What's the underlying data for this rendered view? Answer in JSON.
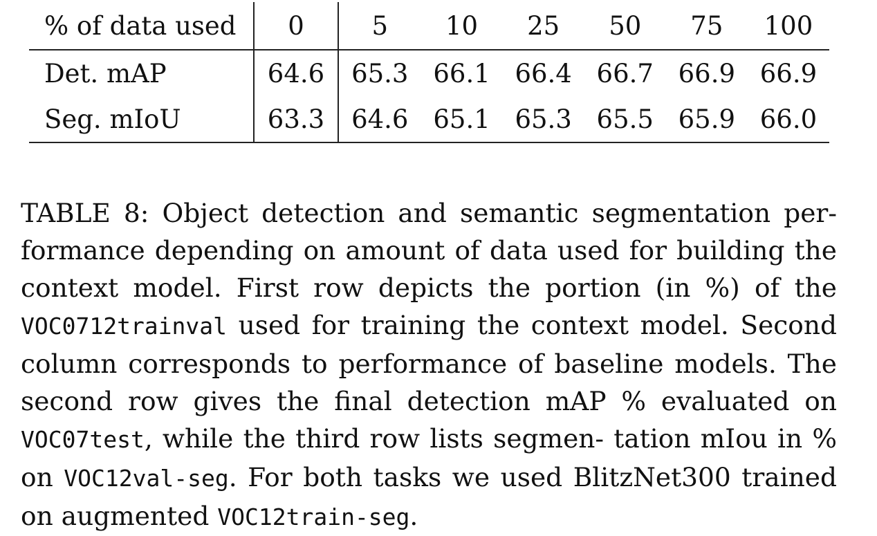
{
  "table": {
    "header_label": "% of data used",
    "columns": [
      "0",
      "5",
      "10",
      "25",
      "50",
      "75",
      "100"
    ],
    "rows": [
      {
        "label": "Det. mAP",
        "values": [
          "64.6",
          "65.3",
          "66.1",
          "66.4",
          "66.7",
          "66.9",
          "66.9"
        ]
      },
      {
        "label": "Seg. mIoU",
        "values": [
          "63.3",
          "64.6",
          "65.1",
          "65.3",
          "65.5",
          "65.9",
          "66.0"
        ]
      }
    ]
  },
  "caption": {
    "p1": "TABLE 8: Object detection and semantic segmentation per- formance depending on amount of data used for building the context model. First row depicts the portion (in %) of the ",
    "m1": "VOC0712trainval",
    "p2": " used for training the context model. Second column corresponds to performance of baseline models. The second row gives the final detection mAP % evaluated on ",
    "m2": "VOC07test",
    "p3": ", while the third row lists segmen- tation mIou in % on ",
    "m3": "VOC12val-seg",
    "p4": ". For both tasks we used BlitzNet300 trained on augmented ",
    "m4": "VOC12train-seg",
    "p5": "."
  }
}
